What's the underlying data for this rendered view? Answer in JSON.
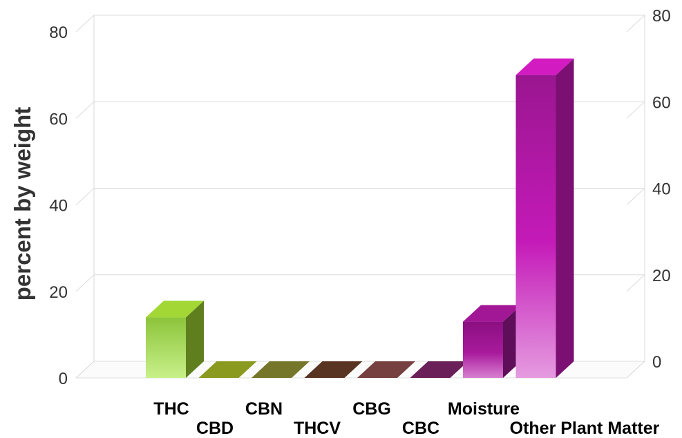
{
  "chart_data": {
    "type": "bar",
    "title": "",
    "xlabel": "",
    "ylabel": "percent by weight",
    "ylim": [
      0,
      80
    ],
    "yticks": [
      0,
      20,
      40,
      60,
      80
    ],
    "grid": true,
    "three_d": true,
    "secondary_axis": true,
    "categories": [
      "THC",
      "CBD",
      "CBN",
      "THCV",
      "CBG",
      "CBC",
      "Moisture",
      "Other Plant Matter"
    ],
    "values": [
      14,
      0,
      0,
      0,
      0,
      0,
      13,
      70
    ],
    "colors": [
      "#9acd32",
      "#8a9a1e",
      "#76762a",
      "#5a3422",
      "#774040",
      "#6a1f58",
      "#99168f",
      "#c81ab8"
    ]
  }
}
